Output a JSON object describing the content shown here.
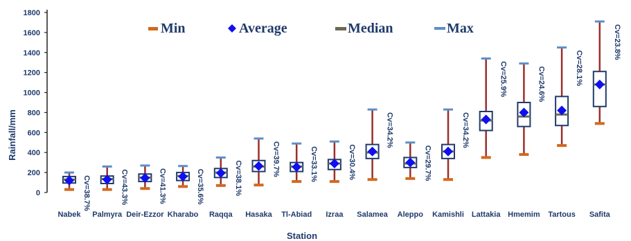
{
  "chart_data": {
    "type": "box",
    "xlabel": "Station",
    "ylabel": "Rainfall/mm",
    "ylim": [
      0,
      1800
    ],
    "yticks": [
      0,
      200,
      400,
      600,
      800,
      1000,
      1200,
      1400,
      1600,
      1800
    ],
    "legend": {
      "placement": "top",
      "entries": [
        {
          "label": "Min",
          "marker": "min"
        },
        {
          "label": "Average",
          "marker": "average"
        },
        {
          "label": "Median",
          "marker": "median"
        },
        {
          "label": "Max",
          "marker": "max"
        }
      ]
    },
    "colors": {
      "box_stroke": "#1f3a6b",
      "whisker": "#9b2f2a",
      "min_marker": "#d2691e",
      "average_marker": "#1010ee",
      "median_marker": "#6b6b55",
      "max_marker": "#5b8fc9",
      "text": "#1f3a6b"
    },
    "stations": [
      {
        "name": "Nabek",
        "min": 30,
        "q1": 95,
        "median": 130,
        "q3": 160,
        "max": 200,
        "average": 120,
        "cv": "Cv=38.7%"
      },
      {
        "name": "Palmyra",
        "min": 30,
        "q1": 90,
        "median": 135,
        "q3": 165,
        "max": 260,
        "average": 130,
        "cv": "Cv=43.3%"
      },
      {
        "name": "Deir-Ezzor",
        "min": 40,
        "q1": 110,
        "median": 150,
        "q3": 185,
        "max": 270,
        "average": 145,
        "cv": "Cv=41.3%"
      },
      {
        "name": "Kharabo",
        "min": 60,
        "q1": 120,
        "median": 165,
        "q3": 200,
        "max": 265,
        "average": 160,
        "cv": "Cv=35.6%"
      },
      {
        "name": "Raqqa",
        "min": 70,
        "q1": 150,
        "median": 200,
        "q3": 240,
        "max": 350,
        "average": 195,
        "cv": "Cv=38.1%"
      },
      {
        "name": "Hasaka",
        "min": 75,
        "q1": 210,
        "median": 260,
        "q3": 320,
        "max": 540,
        "average": 265,
        "cv": "Cv=39.7%"
      },
      {
        "name": "Tl-Abiad",
        "min": 110,
        "q1": 210,
        "median": 260,
        "q3": 300,
        "max": 490,
        "average": 255,
        "cv": "Cv=33.1%"
      },
      {
        "name": "Izraa",
        "min": 110,
        "q1": 230,
        "median": 290,
        "q3": 330,
        "max": 510,
        "average": 290,
        "cv": "Cv=30.4%"
      },
      {
        "name": "Salamea",
        "min": 130,
        "q1": 340,
        "median": 400,
        "q3": 480,
        "max": 830,
        "average": 410,
        "cv": "Cv=34.2%"
      },
      {
        "name": "Aleppo",
        "min": 140,
        "q1": 250,
        "median": 290,
        "q3": 350,
        "max": 500,
        "average": 300,
        "cv": "Cv=29.7%"
      },
      {
        "name": "Kamishli",
        "min": 130,
        "q1": 340,
        "median": 410,
        "q3": 480,
        "max": 830,
        "average": 410,
        "cv": "Cv=34.2%"
      },
      {
        "name": "Lattakia",
        "min": 350,
        "q1": 620,
        "median": 720,
        "q3": 810,
        "max": 1340,
        "average": 730,
        "cv": "Cv=25.9%"
      },
      {
        "name": "Hmemim",
        "min": 380,
        "q1": 660,
        "median": 760,
        "q3": 900,
        "max": 1290,
        "average": 800,
        "cv": "Cv=24.6%"
      },
      {
        "name": "Tartous",
        "min": 470,
        "q1": 670,
        "median": 780,
        "q3": 960,
        "max": 1450,
        "average": 820,
        "cv": "Cv=28.1%"
      },
      {
        "name": "Safita",
        "min": 690,
        "q1": 860,
        "median": 1080,
        "q3": 1210,
        "max": 1710,
        "average": 1080,
        "cv": "Cv=23.8%"
      }
    ]
  }
}
